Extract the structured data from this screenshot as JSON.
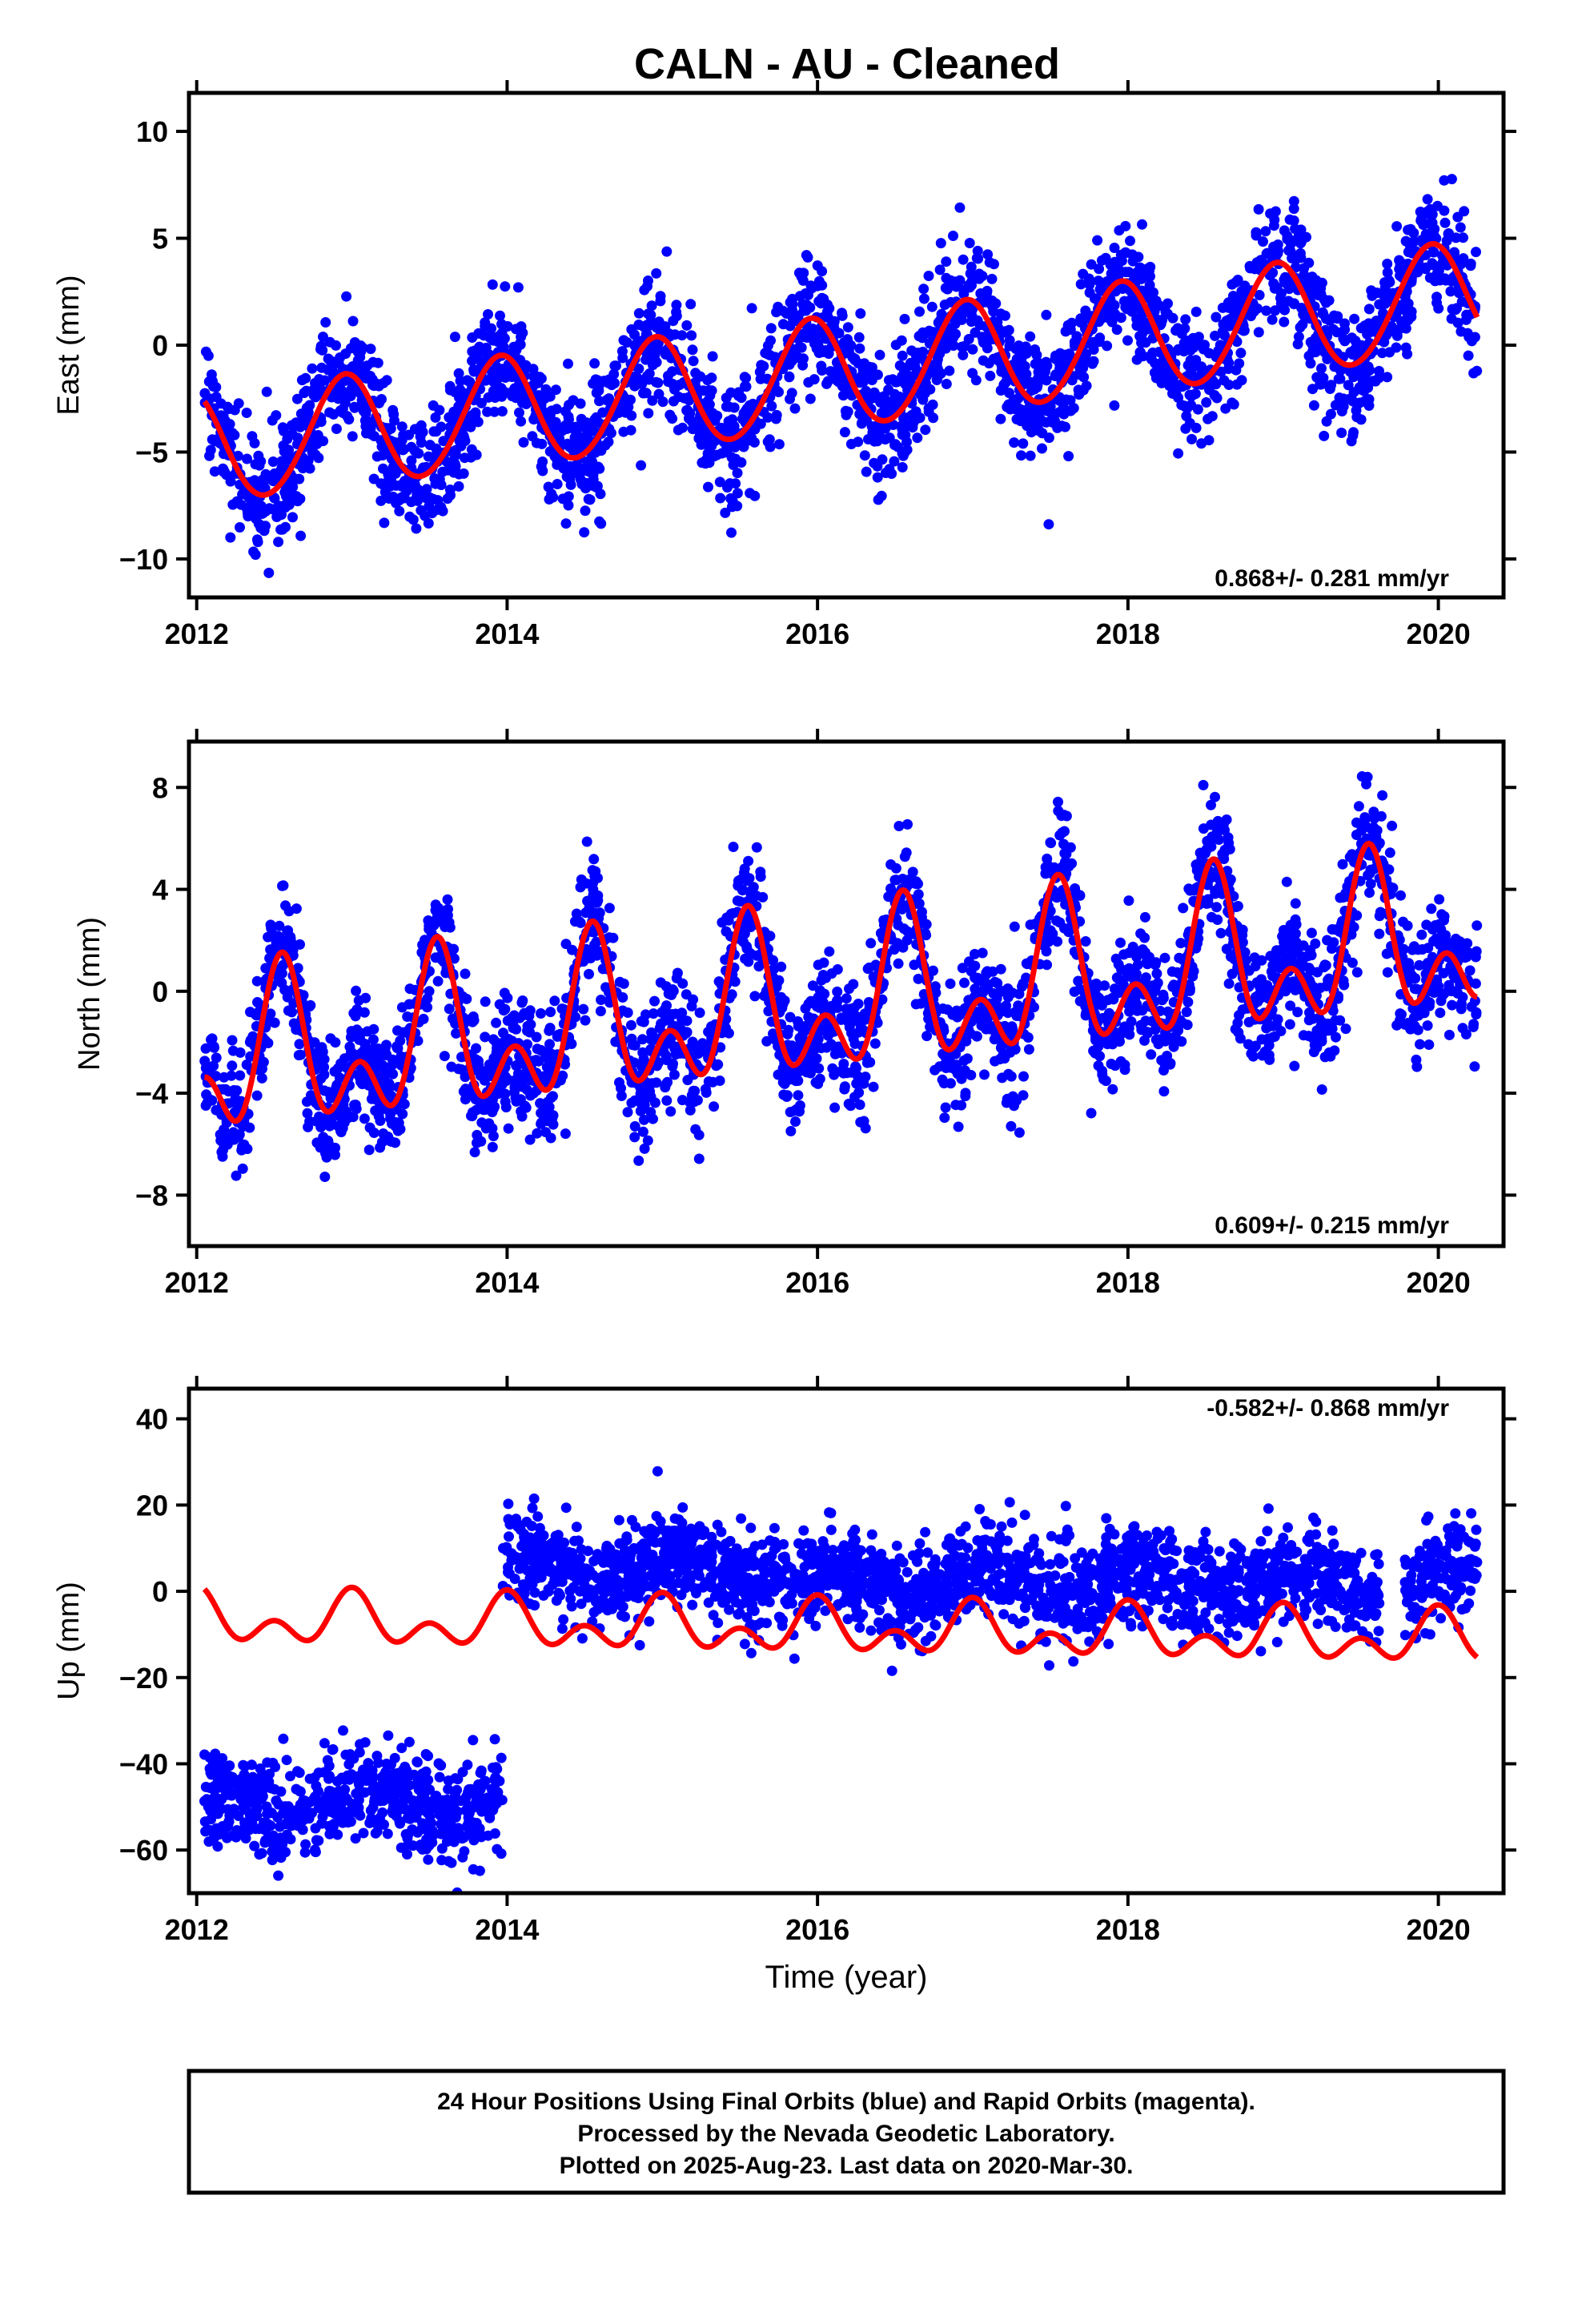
{
  "title": "CALN  - AU - Cleaned",
  "colors": {
    "data": "#0000ff",
    "model": "#ff0000",
    "frame": "#000000"
  },
  "chart_data": [
    {
      "type": "scatter",
      "component": "east",
      "ylabel": "East (mm)",
      "rate_text": "0.868+/- 0.281 mm/yr",
      "rate_position": "bottom-right",
      "xlim": [
        2011.95,
        2020.42
      ],
      "ylim": [
        -11.8,
        11.8
      ],
      "x_ticks": [
        2012,
        2014,
        2016,
        2018,
        2020
      ],
      "x_tick_labels": [
        "2012",
        "2014",
        "2016",
        "2018",
        "2020"
      ],
      "y_ticks": [
        -10,
        -5,
        0,
        5,
        10
      ],
      "y_tick_labels": [
        "−10",
        "−5",
        "0",
        "5",
        "10"
      ],
      "model": {
        "offset": -4.9,
        "trend": 0.868,
        "annual_amp": 2.6,
        "annual_phase": 0.95,
        "semiannual_amp": 0.15,
        "semiannual_phase": 0.0,
        "steps": []
      },
      "scatter": {
        "noise": 1.4,
        "density_per_year": 340
      },
      "series": [
        {
          "name": "24 Hour Positions (Final Orbits)",
          "kind": "points",
          "color": "#0000ff"
        },
        {
          "name": "Model fit",
          "kind": "line",
          "color": "#ff0000"
        }
      ]
    },
    {
      "type": "scatter",
      "component": "north",
      "ylabel": "North (mm)",
      "rate_text": "0.609+/- 0.215 mm/yr",
      "rate_position": "bottom-right",
      "xlim": [
        2011.95,
        2020.42
      ],
      "ylim": [
        -10.0,
        9.8
      ],
      "x_ticks": [
        2012,
        2014,
        2016,
        2018,
        2020
      ],
      "x_tick_labels": [
        "2012",
        "2014",
        "2016",
        "2018",
        "2020"
      ],
      "y_ticks": [
        -8,
        -4,
        0,
        4,
        8
      ],
      "y_tick_labels": [
        "−8",
        "−4",
        "0",
        "4",
        "8"
      ],
      "model": {
        "offset": -3.0,
        "trend": 0.609,
        "annual_amp": 2.3,
        "annual_phase": 0.55,
        "semiannual_amp": 1.9,
        "semiannual_phase": 0.55,
        "steps": []
      },
      "scatter": {
        "noise": 1.25,
        "density_per_year": 340
      },
      "series": [
        {
          "name": "24 Hour Positions (Final Orbits)",
          "kind": "points",
          "color": "#0000ff"
        },
        {
          "name": "Model fit",
          "kind": "line",
          "color": "#ff0000"
        }
      ]
    },
    {
      "type": "scatter",
      "component": "up",
      "ylabel": "Up (mm)",
      "rate_text": "-0.582+/- 0.868 mm/yr",
      "rate_position": "top-right",
      "xlabel": "Time (year)",
      "xlim": [
        2011.95,
        2020.42
      ],
      "ylim": [
        -70.0,
        47.0
      ],
      "x_ticks": [
        2012,
        2014,
        2016,
        2018,
        2020
      ],
      "x_tick_labels": [
        "2012",
        "2014",
        "2016",
        "2018",
        "2020"
      ],
      "y_ticks": [
        -60,
        -40,
        -20,
        0,
        20,
        40
      ],
      "y_tick_labels": [
        "−60",
        "−40",
        "−20",
        "0",
        "20",
        "40"
      ],
      "model": {
        "offset": -6.5,
        "trend": -0.582,
        "annual_amp": 4.0,
        "annual_phase": 0.0,
        "semiannual_amp": 4.0,
        "semiannual_phase": 0.0,
        "steps": []
      },
      "scatter": {
        "noise": 5.5,
        "density_per_year": 340
      },
      "segments": [
        {
          "t0": 2012.05,
          "t1": 2013.97,
          "level": -50,
          "slope": 1.0
        },
        {
          "t0": 2013.97,
          "t1": 2015.75,
          "level": 5,
          "slope": 0
        },
        {
          "t0": 2015.75,
          "t1": 2019.62,
          "level": 2,
          "slope": 0
        },
        {
          "t0": 2019.78,
          "t1": 2020.25,
          "level": 2,
          "slope": 0
        }
      ],
      "series": [
        {
          "name": "24 Hour Positions (Final Orbits)",
          "kind": "points",
          "color": "#0000ff"
        },
        {
          "name": "Model fit",
          "kind": "line",
          "color": "#ff0000"
        }
      ]
    }
  ],
  "footer": {
    "line1": "24 Hour Positions Using Final Orbits (blue) and Rapid Orbits (magenta).",
    "line2": "Processed by the Nevada Geodetic Laboratory.",
    "line3": "Plotted on 2025-Aug-23. Last data on 2020-Mar-30."
  }
}
